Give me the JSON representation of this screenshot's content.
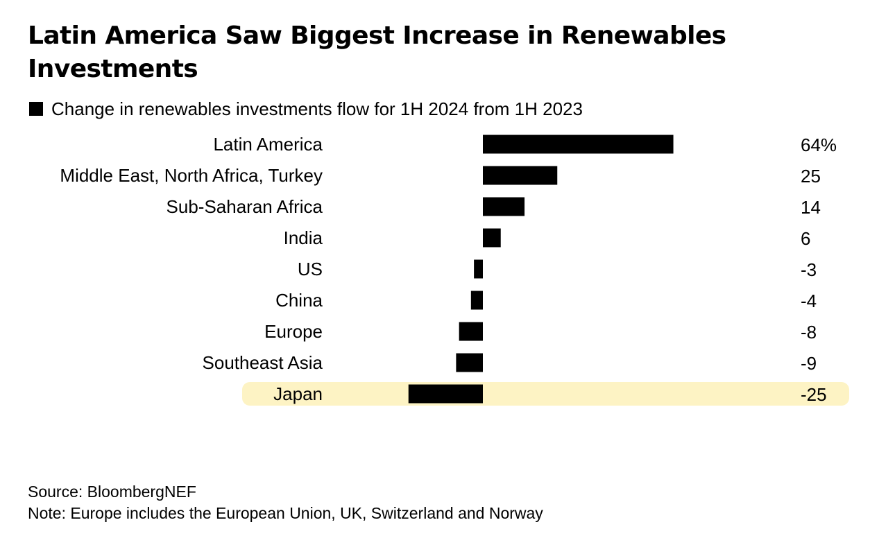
{
  "chart_data": {
    "type": "bar",
    "orientation": "horizontal",
    "title": "Latin America Saw Biggest Increase in Renewables Investments",
    "legend": [
      "Change in renewables investments flow for 1H 2024 from 1H 2023"
    ],
    "categories": [
      "Latin America",
      "Middle East, North Africa, Turkey",
      "Sub-Saharan Africa",
      "India",
      "US",
      "China",
      "Europe",
      "Southeast Asia",
      "Japan"
    ],
    "series": [
      {
        "name": "Change in renewables investments flow for 1H 2024 from 1H 2023",
        "values": [
          64,
          25,
          14,
          6,
          -3,
          -4,
          -8,
          -9,
          -25
        ],
        "value_labels": [
          "64%",
          "25",
          "14",
          "6",
          "-3",
          "-4",
          "-8",
          "-9",
          "-25"
        ]
      }
    ],
    "highlighted_category": "Japan",
    "bar_color": "#000000",
    "highlight_color": "#fdf3c4",
    "grid": false
  },
  "source": "Source: BloombergNEF",
  "note": "Note: Europe includes the European Union, UK, Switzerland and Norway"
}
